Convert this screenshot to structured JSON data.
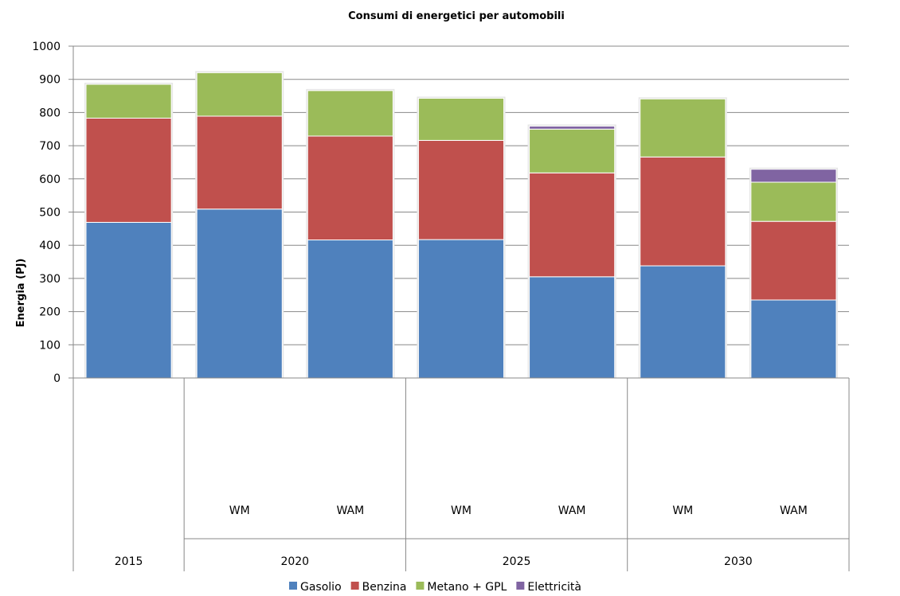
{
  "chart_data": {
    "type": "bar",
    "stacked": true,
    "title": "Consumi di energetici per automobili",
    "ylabel": "Energia (PJ)",
    "xlabel": "",
    "ylim": [
      0,
      1000
    ],
    "yticks": [
      0,
      100,
      200,
      300,
      400,
      500,
      600,
      700,
      800,
      900,
      1000
    ],
    "grid": true,
    "legend": "bottom",
    "groups": [
      {
        "label": "2015",
        "categories": [
          ""
        ]
      },
      {
        "label": "2020",
        "categories": [
          "WM",
          "WAM"
        ]
      },
      {
        "label": "2025",
        "categories": [
          "WM",
          "WAM"
        ]
      },
      {
        "label": "2030",
        "categories": [
          "WM",
          "WAM"
        ]
      }
    ],
    "series": [
      {
        "name": "Gasolio",
        "color": "#4f81bd",
        "values": [
          469,
          509,
          416,
          417,
          305,
          338,
          235
        ]
      },
      {
        "name": "Benzina",
        "color": "#c0504d",
        "values": [
          314,
          280,
          313,
          299,
          313,
          328,
          237
        ]
      },
      {
        "name": "Metano + GPL",
        "color": "#9bbb59",
        "values": [
          102,
          131,
          137,
          127,
          132,
          175,
          118
        ]
      },
      {
        "name": "Elettricità",
        "color": "#8064a2",
        "values": [
          0,
          0,
          0,
          0,
          9,
          0,
          39
        ]
      }
    ]
  }
}
